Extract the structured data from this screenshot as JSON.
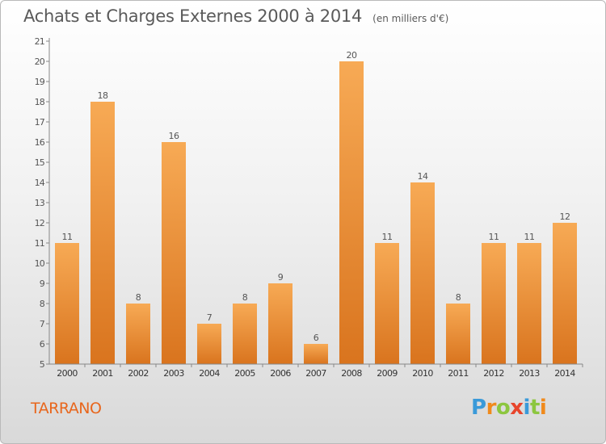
{
  "chart_data": {
    "type": "bar",
    "title": "Achats et Charges Externes 2000 à 2014",
    "subtitle": "(en milliers d'€)",
    "categories": [
      "2000",
      "2001",
      "2002",
      "2003",
      "2004",
      "2005",
      "2006",
      "2007",
      "2008",
      "2009",
      "2010",
      "2011",
      "2012",
      "2013",
      "2014"
    ],
    "values": [
      11,
      18,
      8,
      16,
      7,
      8,
      9,
      6,
      20,
      11,
      14,
      8,
      11,
      11,
      12
    ],
    "ylim": [
      5,
      21
    ],
    "yticks": [
      5,
      6,
      7,
      8,
      9,
      10,
      11,
      12,
      13,
      14,
      15,
      16,
      17,
      18,
      19,
      20,
      21
    ],
    "grid": false,
    "legend": "none",
    "colors": {
      "bar_light": "#f7aa55",
      "bar_dark": "#d9741e",
      "axis": "#888888",
      "text": "#555555"
    }
  },
  "commune": "TARRANO",
  "logo": {
    "letters": [
      "P",
      "r",
      "o",
      "x",
      "i",
      "t",
      "i"
    ],
    "colors": [
      "#3a9ad9",
      "#f08a1c",
      "#8cc63f",
      "#e8452c",
      "#3a9ad9",
      "#8cc63f",
      "#f08a1c"
    ]
  }
}
